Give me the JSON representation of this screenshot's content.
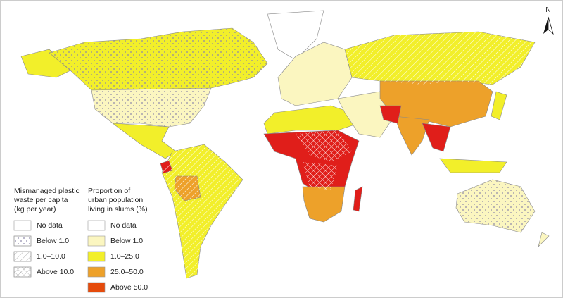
{
  "north_label": "N",
  "legends": [
    {
      "title_lines": [
        "Mismanaged plastic",
        "waste per capita",
        "(kg per year)"
      ],
      "items": [
        "No data",
        "Below 1.0",
        "1.0–10.0",
        "Above 10.0"
      ]
    },
    {
      "title_lines": [
        "Proportion of",
        "urban population",
        "living in slums (%)"
      ],
      "items": [
        "No data",
        "Below 1.0",
        "1.0–25.0",
        "25.0–50.0",
        "Above 50.0"
      ]
    }
  ]
}
